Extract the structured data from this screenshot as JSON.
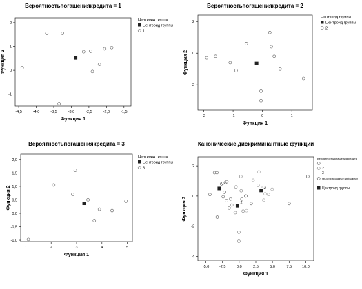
{
  "chart_data": [
    {
      "type": "scatter",
      "title": "Вероятностьпогашениякредита = 1",
      "xlabel": "Функция 1",
      "ylabel": "Функция 2",
      "xlim": [
        -4.6,
        -1.3
      ],
      "ylim": [
        -1.5,
        2.2
      ],
      "xticks": [
        -4.5,
        -4.0,
        -3.5,
        -3.0,
        -2.5,
        -2.0,
        -1.5
      ],
      "xtick_labels": [
        "-4,5",
        "-4,0",
        "-3,5",
        "-3,0",
        "-2,5",
        "-2,0",
        "-1,5"
      ],
      "yticks": [
        -1,
        0,
        1,
        2
      ],
      "ytick_labels": [
        "-1",
        "0",
        "1",
        "2"
      ],
      "legend": {
        "title": "Центроид группы",
        "entries": [
          "Центроид группы",
          "1"
        ],
        "position": "top-right"
      },
      "series": [
        {
          "name": "1",
          "marker": "circle",
          "points": [
            [
              -4.4,
              0.1
            ],
            [
              -3.7,
              1.55
            ],
            [
              -3.25,
              1.55
            ],
            [
              -3.35,
              -1.4
            ],
            [
              -2.65,
              0.78
            ],
            [
              -2.45,
              0.8
            ],
            [
              -2.4,
              -0.05
            ],
            [
              -2.2,
              0.25
            ],
            [
              -2.05,
              0.9
            ],
            [
              -1.85,
              0.95
            ]
          ]
        },
        {
          "name": "Центроид группы",
          "marker": "square",
          "points": [
            [
              -2.88,
              0.52
            ]
          ]
        }
      ]
    },
    {
      "type": "scatter",
      "title": "Вероятностьпогашениякредита = 2",
      "xlabel": "Функция 1",
      "ylabel": "Функция 2",
      "xlim": [
        -2.2,
        1.7
      ],
      "ylim": [
        -3.6,
        2.4
      ],
      "xticks": [
        -2,
        -1,
        0,
        1
      ],
      "xtick_labels": [
        "-2",
        "-1",
        "0",
        "1"
      ],
      "yticks": [
        -2,
        0,
        2
      ],
      "ytick_labels": [
        "-2",
        "0",
        "2"
      ],
      "legend": {
        "title": "Центроид группы",
        "entries": [
          "Центроид группы",
          "2"
        ],
        "position": "top-right"
      },
      "series": [
        {
          "name": "2",
          "marker": "circle",
          "points": [
            [
              -1.9,
              -0.3
            ],
            [
              -1.6,
              -0.2
            ],
            [
              -1.1,
              -0.6
            ],
            [
              -0.9,
              -1.1
            ],
            [
              -0.55,
              0.6
            ],
            [
              -0.05,
              -2.4
            ],
            [
              -0.05,
              -3.0
            ],
            [
              0.25,
              1.3
            ],
            [
              0.3,
              0.4
            ],
            [
              0.4,
              -0.2
            ],
            [
              0.6,
              -1.0
            ],
            [
              1.4,
              -1.6
            ]
          ]
        },
        {
          "name": "Центроид группы",
          "marker": "square",
          "points": [
            [
              -0.2,
              -0.65
            ]
          ]
        }
      ]
    },
    {
      "type": "scatter",
      "title": "Вероятностьпогашениякредита = 3",
      "xlabel": "Функция 1",
      "ylabel": "Функция 2",
      "xlim": [
        0.8,
        5.2
      ],
      "ylim": [
        -1.05,
        2.2
      ],
      "xticks": [
        1,
        2,
        3,
        4,
        5
      ],
      "xtick_labels": [
        "1",
        "2",
        "3",
        "4",
        "5"
      ],
      "yticks": [
        -1.0,
        -0.5,
        0.0,
        0.5,
        1.0,
        1.5,
        2.0
      ],
      "ytick_labels": [
        "-1,0",
        "-0,5",
        "0,0",
        "0,5",
        "1,0",
        "1,5",
        "2,0"
      ],
      "legend": {
        "title": "Центроид группы",
        "entries": [
          "Центроид группы",
          "3"
        ],
        "position": "top-right"
      },
      "series": [
        {
          "name": "3",
          "marker": "circle",
          "points": [
            [
              1.1,
              -0.97
            ],
            [
              2.1,
              1.05
            ],
            [
              2.85,
              0.7
            ],
            [
              2.95,
              1.6
            ],
            [
              3.45,
              0.5
            ],
            [
              3.7,
              -0.27
            ],
            [
              3.9,
              0.15
            ],
            [
              4.4,
              0.1
            ],
            [
              4.95,
              0.45
            ]
          ]
        },
        {
          "name": "Центроид группы",
          "marker": "square",
          "points": [
            [
              3.3,
              0.37
            ]
          ]
        }
      ]
    },
    {
      "type": "scatter",
      "title": "Канонические дискриминантные функции",
      "xlabel": "Функция 1",
      "ylabel": "Функция 2",
      "xlim": [
        -6.2,
        11.2
      ],
      "ylim": [
        -4.3,
        2.6
      ],
      "xticks": [
        -5.0,
        -2.5,
        0.0,
        2.5,
        5.0,
        7.5,
        10.0
      ],
      "xtick_labels": [
        "-5,0",
        "-2,5",
        "0,0",
        "2,5",
        "5,0",
        "7,5",
        "10,0"
      ],
      "yticks": [
        -4,
        -2,
        0,
        2
      ],
      "ytick_labels": [
        "-4",
        "-2",
        "0",
        "2"
      ],
      "legend": {
        "title": "Вероятностьпогашениякредита",
        "entries": [
          "1",
          "2",
          "3",
          "Несгруппированные наблюдения",
          "Центроид группы"
        ],
        "position": "right"
      },
      "centroid_labels": [
        "1",
        "2",
        "3"
      ],
      "series": [
        {
          "name": "1",
          "marker": "circle",
          "points": [
            [
              -4.4,
              0.1
            ],
            [
              -3.7,
              1.55
            ],
            [
              -3.35,
              1.55
            ],
            [
              -3.3,
              -1.4
            ],
            [
              -2.65,
              0.8
            ],
            [
              -2.45,
              0.85
            ],
            [
              -2.4,
              -0.05
            ],
            [
              -2.2,
              0.25
            ],
            [
              -2.05,
              0.9
            ],
            [
              -1.85,
              0.95
            ]
          ]
        },
        {
          "name": "2",
          "marker": "circle",
          "points": [
            [
              -1.9,
              -0.3
            ],
            [
              -1.3,
              -0.2
            ],
            [
              -1.1,
              -0.6
            ],
            [
              -0.6,
              -1.1
            ],
            [
              -0.5,
              0.6
            ],
            [
              -0.05,
              -2.4
            ],
            [
              -0.05,
              -3.0
            ],
            [
              0.25,
              1.3
            ],
            [
              0.3,
              0.35
            ],
            [
              0.4,
              -0.2
            ],
            [
              0.6,
              -1.0
            ],
            [
              -1.5,
              -0.8
            ]
          ]
        },
        {
          "name": "3",
          "marker": "circle",
          "points": [
            [
              1.1,
              -0.97
            ],
            [
              2.1,
              1.05
            ],
            [
              2.85,
              0.7
            ],
            [
              2.95,
              1.6
            ],
            [
              3.45,
              0.5
            ],
            [
              3.7,
              -0.27
            ],
            [
              3.9,
              0.15
            ],
            [
              4.4,
              0.1
            ],
            [
              4.95,
              0.45
            ]
          ]
        },
        {
          "name": "Несгруппированные наблюдения",
          "marker": "circle",
          "points": [
            [
              7.5,
              -0.5
            ],
            [
              10.3,
              1.3
            ],
            [
              1.0,
              0.0
            ],
            [
              1.8,
              -0.5
            ]
          ]
        },
        {
          "name": "Центроид группы",
          "marker": "square",
          "points": [
            [
              -3.0,
              0.5
            ],
            [
              -0.25,
              -0.65
            ],
            [
              3.3,
              0.37
            ]
          ]
        }
      ]
    }
  ]
}
